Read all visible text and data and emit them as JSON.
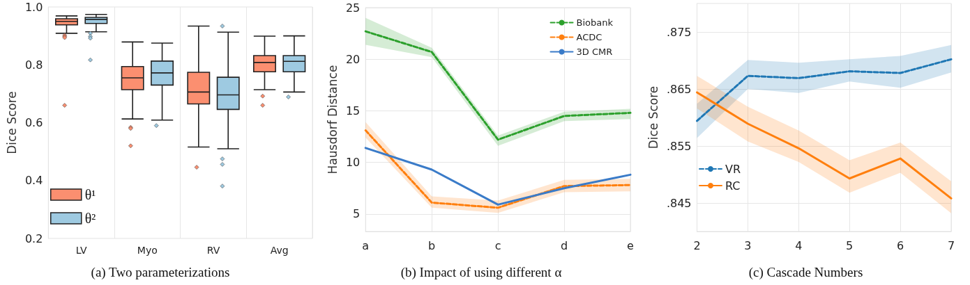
{
  "chart_data": [
    {
      "type": "box",
      "title": "(a) Two parameterizations",
      "ylabel": "Dice Score",
      "categories": [
        "LV",
        "Myo",
        "RV",
        "Avg"
      ],
      "ylim": [
        0.2,
        1.0
      ],
      "yticks": [
        0.2,
        0.4,
        0.6,
        0.8,
        {
          "value": 1.0,
          "label": "1.0"
        }
      ],
      "grid": "x",
      "legend": "bottom left",
      "series": [
        {
          "name": "θ¹",
          "color": "#fb8f70",
          "boxes": [
            {
              "low": 0.909,
              "q1": 0.938,
              "median": 0.95,
              "q3": 0.959,
              "high": 0.969,
              "outliers": [
                0.902,
                0.898,
                0.894,
                0.66
              ]
            },
            {
              "low": 0.613,
              "q1": 0.714,
              "median": 0.755,
              "q3": 0.794,
              "high": 0.879,
              "outliers": [
                0.584,
                0.58,
                0.52
              ]
            },
            {
              "low": 0.516,
              "q1": 0.665,
              "median": 0.706,
              "q3": 0.774,
              "high": 0.934,
              "outliers": [
                0.446
              ]
            },
            {
              "low": 0.714,
              "q1": 0.776,
              "median": 0.808,
              "q3": 0.832,
              "high": 0.899,
              "outliers": [
                0.692,
                0.66
              ]
            }
          ]
        },
        {
          "name": "θ²",
          "color": "#9ecae1",
          "boxes": [
            {
              "low": 0.914,
              "q1": 0.943,
              "median": 0.957,
              "q3": 0.964,
              "high": 0.974,
              "outliers": [
                0.909,
                0.898,
                0.892,
                0.817
              ]
            },
            {
              "low": 0.609,
              "q1": 0.73,
              "median": 0.772,
              "q3": 0.813,
              "high": 0.875,
              "outliers": [
                0.59
              ]
            },
            {
              "low": 0.51,
              "q1": 0.646,
              "median": 0.696,
              "q3": 0.757,
              "high": 0.913,
              "outliers": [
                0.934,
                0.475,
                0.456,
                0.381
              ]
            },
            {
              "low": 0.706,
              "q1": 0.776,
              "median": 0.812,
              "q3": 0.832,
              "high": 0.9,
              "outliers": [
                0.689
              ]
            }
          ]
        }
      ]
    },
    {
      "type": "line",
      "title": "(b) Impact of using different α",
      "ylabel": "Hausdorf Distance",
      "categories": [
        "a",
        "b",
        "c",
        "d",
        "e"
      ],
      "ylim": [
        3.3,
        25
      ],
      "yticks": [
        5,
        10,
        15,
        20,
        25
      ],
      "grid": true,
      "legend": "top right",
      "marker": "none",
      "series": [
        {
          "name": "Biobank",
          "color": "#2ca02c",
          "line_style": "dashed",
          "values": [
            22.7,
            20.7,
            12.2,
            14.5,
            14.8
          ],
          "lower": [
            21.4,
            20.2,
            11.6,
            14.0,
            14.2
          ],
          "upper": [
            24.0,
            21.1,
            12.6,
            14.9,
            15.2
          ]
        },
        {
          "name": "ACDC",
          "color": "#ff7f0e",
          "line_style": "dashed",
          "values": [
            13.1,
            6.1,
            5.6,
            7.7,
            7.8
          ],
          "lower": [
            12.4,
            5.6,
            5.1,
            7.1,
            7.2
          ],
          "upper": [
            13.9,
            6.7,
            6.3,
            8.3,
            8.4
          ]
        },
        {
          "name": "3D CMR",
          "color": "#3a7bc8",
          "line_style": "solid",
          "values": [
            11.4,
            9.3,
            5.9,
            7.5,
            8.8
          ]
        }
      ]
    },
    {
      "type": "line",
      "title": "(c) Cascade Numbers",
      "ylabel": "Dice Score",
      "x": [
        2,
        3,
        4,
        5,
        6,
        7
      ],
      "xlim": [
        2,
        7
      ],
      "xticks": [
        2,
        3,
        4,
        5,
        6,
        7
      ],
      "ylim": [
        0.84,
        0.88
      ],
      "yticks": [
        {
          "value": 0.845,
          "label": ".845"
        },
        {
          "value": 0.855,
          "label": ".855"
        },
        {
          "value": 0.865,
          "label": ".865"
        },
        {
          "value": 0.875,
          "label": ".875"
        }
      ],
      "grid": true,
      "legend": "left",
      "marker": "none",
      "series": [
        {
          "name": "VR",
          "color": "#1f77b4",
          "line_style": "dashed",
          "values": [
            0.8594,
            0.8673,
            0.8669,
            0.8681,
            0.8678,
            0.8702
          ],
          "lower": [
            0.8564,
            0.865,
            0.8643,
            0.8663,
            0.8652,
            0.8679
          ],
          "upper": [
            0.8624,
            0.8701,
            0.8696,
            0.8702,
            0.8708,
            0.8727
          ]
        },
        {
          "name": "RC",
          "color": "#ff7f0e",
          "line_style": "solid",
          "values": [
            0.8644,
            0.8589,
            0.8546,
            0.8493,
            0.8528,
            0.8458
          ],
          "lower": [
            0.8616,
            0.8558,
            0.8522,
            0.8468,
            0.8503,
            0.8432
          ],
          "upper": [
            0.8673,
            0.8619,
            0.8577,
            0.8525,
            0.8556,
            0.8488
          ]
        }
      ]
    }
  ]
}
